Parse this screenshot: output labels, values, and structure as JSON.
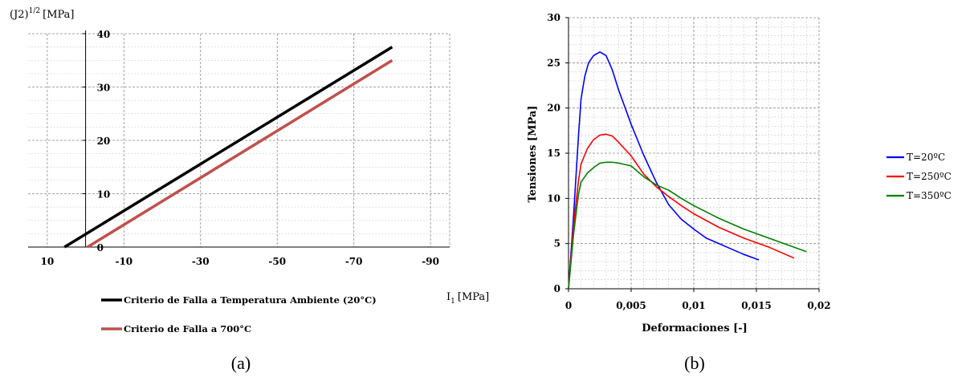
{
  "chart_data": [
    {
      "type": "line",
      "panel_label": "(a)",
      "ylabel": "(J2)",
      "ylabel_sup": "1/2",
      "ylabel_unit": "[MPa]",
      "xlabel": "I",
      "xlabel_sub": "1",
      "xlabel_unit": "[MPa]",
      "xlim": [
        15,
        -95
      ],
      "ylim": [
        0,
        40
      ],
      "x_ticks": [
        10,
        -10,
        -30,
        -50,
        -70,
        -90
      ],
      "y_ticks": [
        0,
        10,
        20,
        30,
        40
      ],
      "grid": true,
      "legend_position": "bottom",
      "series": [
        {
          "name": "Criterio de Falla a Temperatura Ambiente (20°C)",
          "color": "#000000",
          "x": [
            5.5,
            -80
          ],
          "y": [
            0,
            37.5
          ]
        },
        {
          "name": "Criterio de Falla a 700°C",
          "color": "#c0504d",
          "x": [
            -0.5,
            -80
          ],
          "y": [
            0,
            35
          ]
        }
      ]
    },
    {
      "type": "line",
      "panel_label": "(b)",
      "xlabel": "Deformaciones [-]",
      "ylabel": "Tensiones [MPa]",
      "xlim": [
        0,
        0.02
      ],
      "ylim": [
        0,
        30
      ],
      "x_ticks": [
        "0",
        "0,005",
        "0,01",
        "0,015",
        "0,02"
      ],
      "y_ticks": [
        0,
        5,
        10,
        15,
        20,
        25,
        30
      ],
      "grid": true,
      "legend_position": "right",
      "series": [
        {
          "name": "T=20ºC",
          "color": "#0000ff",
          "x": [
            0,
            0.0004,
            0.0008,
            0.001,
            0.0013,
            0.0016,
            0.002,
            0.0025,
            0.003,
            0.0035,
            0.004,
            0.005,
            0.006,
            0.007,
            0.008,
            0.009,
            0.01,
            0.011,
            0.012,
            0.013,
            0.014,
            0.0152
          ],
          "y": [
            0,
            8,
            17,
            21,
            23.5,
            25,
            25.8,
            26.2,
            25.8,
            24.2,
            22,
            18.2,
            14.8,
            11.8,
            9.3,
            7.7,
            6.6,
            5.6,
            5,
            4.4,
            3.8,
            3.2
          ]
        },
        {
          "name": "T=250ºC",
          "color": "#ff0000",
          "x": [
            0,
            0.0004,
            0.0008,
            0.001,
            0.0015,
            0.002,
            0.0025,
            0.003,
            0.0035,
            0.004,
            0.005,
            0.006,
            0.007,
            0.008,
            0.009,
            0.01,
            0.012,
            0.014,
            0.016,
            0.018
          ],
          "y": [
            0,
            7,
            12,
            13.8,
            15.5,
            16.5,
            17,
            17.1,
            16.9,
            16.2,
            14.7,
            12.7,
            11.3,
            10.2,
            9.2,
            8.3,
            6.8,
            5.6,
            4.6,
            3.4
          ]
        },
        {
          "name": "T=350ºC",
          "color": "#008000",
          "x": [
            0,
            0.0004,
            0.0008,
            0.001,
            0.0015,
            0.002,
            0.0025,
            0.003,
            0.0035,
            0.004,
            0.005,
            0.006,
            0.007,
            0.008,
            0.009,
            0.01,
            0.012,
            0.014,
            0.016,
            0.018,
            0.019
          ],
          "y": [
            0,
            6,
            10.5,
            11.8,
            12.8,
            13.4,
            13.9,
            14,
            14,
            13.9,
            13.6,
            12.4,
            11.5,
            10.9,
            10,
            9.2,
            7.8,
            6.6,
            5.6,
            4.6,
            4.1
          ]
        }
      ]
    }
  ]
}
